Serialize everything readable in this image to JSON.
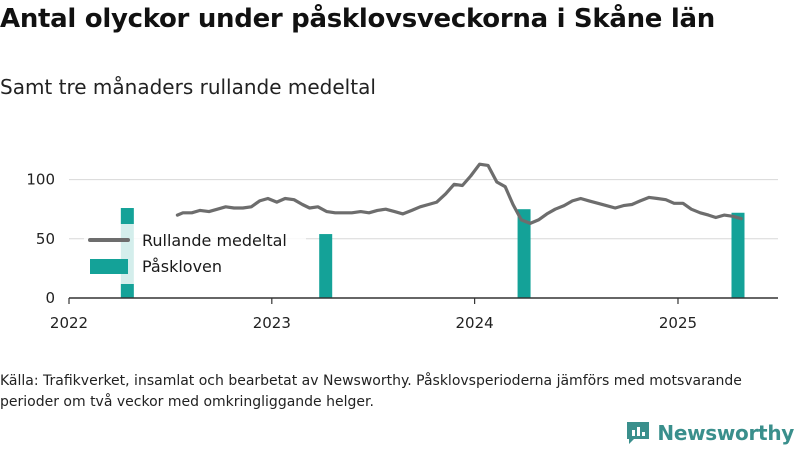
{
  "header": {
    "title": "Antal olyckor under påsklovsveckorna i Skåne län",
    "subtitle": "Samt tre månaders rullande medeltal"
  },
  "footer": {
    "source": "Källa: Trafikverket, insamlat och bearbetat av Newsworthy. Påsklovsperioderna jämförs med motsvarande perioder om två veckor med omkringliggande helger.",
    "brand": "Newsworthy"
  },
  "colors": {
    "line": "#6d6d6d",
    "bar": "#14a298",
    "axis": "#333333",
    "grid": "#d8d8d8",
    "brand": "#3a8f8c"
  },
  "chart_data": {
    "type": "bar",
    "xlim": [
      "2022-01-01",
      "2025-06-30"
    ],
    "ylim": [
      0,
      125
    ],
    "x_ticks": [
      "2022",
      "2023",
      "2024",
      "2025"
    ],
    "y_ticks": [
      0,
      50,
      100
    ],
    "grid": true,
    "legend_position": "left",
    "legend": [
      "Rullande medeltal",
      "Påskloven"
    ],
    "series": [
      {
        "name": "Påskloven",
        "type": "bar",
        "x": [
          "2022-04-16",
          "2023-04-08",
          "2024-03-30",
          "2025-04-19"
        ],
        "values": [
          76,
          54,
          75,
          72
        ]
      },
      {
        "name": "Rullande medeltal",
        "type": "line",
        "x": [
          "2022-07-15",
          "2022-07-25",
          "2022-08-10",
          "2022-08-25",
          "2022-09-10",
          "2022-09-25",
          "2022-10-10",
          "2022-10-25",
          "2022-11-10",
          "2022-11-25",
          "2022-12-10",
          "2022-12-25",
          "2023-01-10",
          "2023-01-25",
          "2023-02-10",
          "2023-02-25",
          "2023-03-10",
          "2023-03-25",
          "2023-04-10",
          "2023-04-25",
          "2023-05-10",
          "2023-05-25",
          "2023-06-10",
          "2023-06-25",
          "2023-07-10",
          "2023-07-25",
          "2023-08-10",
          "2023-08-25",
          "2023-09-10",
          "2023-09-25",
          "2023-10-10",
          "2023-10-25",
          "2023-11-10",
          "2023-11-25",
          "2023-12-10",
          "2023-12-25",
          "2024-01-10",
          "2024-01-25",
          "2024-02-10",
          "2024-02-25",
          "2024-03-10",
          "2024-03-25",
          "2024-04-10",
          "2024-04-25",
          "2024-05-10",
          "2024-05-25",
          "2024-06-10",
          "2024-06-25",
          "2024-07-10",
          "2024-07-25",
          "2024-08-10",
          "2024-08-25",
          "2024-09-10",
          "2024-09-25",
          "2024-10-10",
          "2024-10-25",
          "2024-11-10",
          "2024-11-25",
          "2024-12-10",
          "2024-12-25",
          "2025-01-10",
          "2025-01-25",
          "2025-02-10",
          "2025-02-25",
          "2025-03-10",
          "2025-03-25",
          "2025-04-10",
          "2025-04-25"
        ],
        "values": [
          70,
          72,
          72,
          74,
          73,
          75,
          77,
          76,
          76,
          77,
          82,
          84,
          81,
          84,
          83,
          79,
          76,
          77,
          73,
          72,
          72,
          72,
          73,
          72,
          74,
          75,
          73,
          71,
          74,
          77,
          79,
          81,
          88,
          96,
          95,
          103,
          113,
          112,
          98,
          94,
          79,
          66,
          63,
          66,
          71,
          75,
          78,
          82,
          84,
          82,
          80,
          78,
          76,
          78,
          79,
          82,
          85,
          84,
          83,
          80,
          80,
          75,
          72,
          70,
          68,
          70,
          69,
          67
        ]
      }
    ]
  }
}
